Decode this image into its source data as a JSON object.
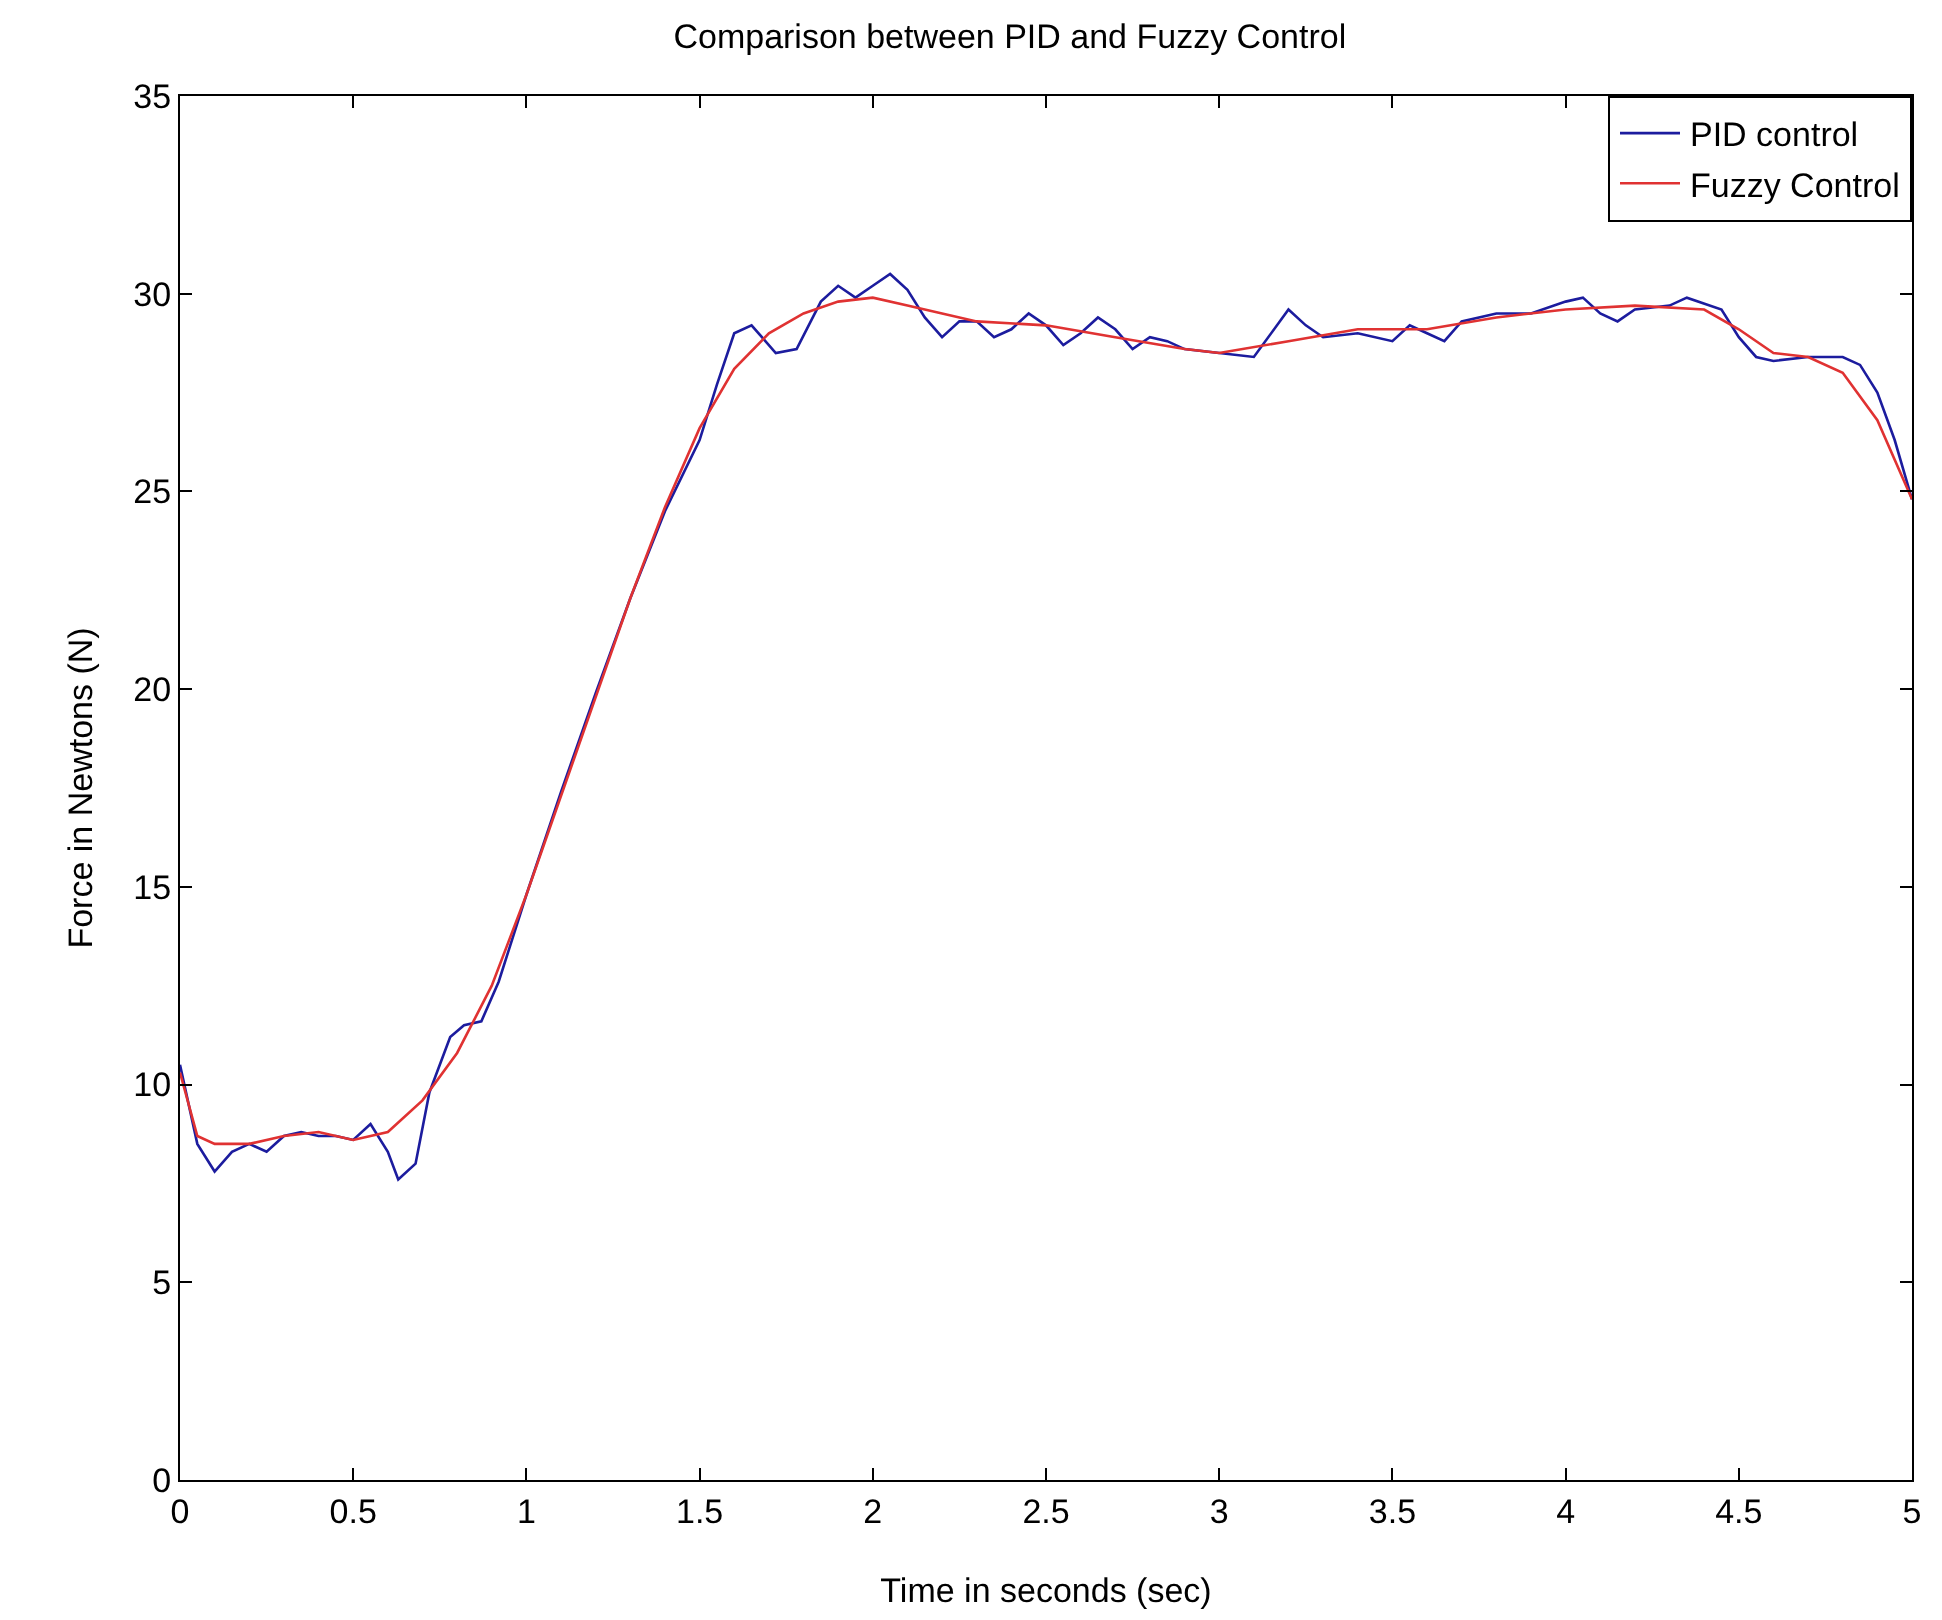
{
  "chart_data": {
    "type": "line",
    "title": "Comparison between PID and Fuzzy Control",
    "xlabel": "Time in seconds (sec)",
    "ylabel": "Force in Newtons (N)",
    "xlim": [
      0,
      5
    ],
    "xticks": [
      0,
      0.5,
      1,
      1.5,
      2,
      2.5,
      3,
      3.5,
      4,
      4.5,
      5
    ],
    "ylim": [
      0,
      35
    ],
    "yticks": [
      0,
      5,
      10,
      15,
      20,
      25,
      30,
      35
    ],
    "grid": false,
    "legend": "top right",
    "line_style": "solid",
    "marker": "none",
    "series": [
      {
        "name": "PID control",
        "color": "#1c1c9e",
        "x": [
          0,
          0.05,
          0.1,
          0.15,
          0.2,
          0.25,
          0.3,
          0.35,
          0.4,
          0.45,
          0.5,
          0.55,
          0.6,
          0.63,
          0.68,
          0.72,
          0.78,
          0.82,
          0.87,
          0.92,
          1,
          1.1,
          1.2,
          1.3,
          1.4,
          1.5,
          1.55,
          1.6,
          1.65,
          1.72,
          1.78,
          1.85,
          1.9,
          1.95,
          2,
          2.05,
          2.1,
          2.15,
          2.2,
          2.25,
          2.3,
          2.35,
          2.4,
          2.45,
          2.5,
          2.55,
          2.6,
          2.65,
          2.7,
          2.75,
          2.8,
          2.85,
          2.9,
          3,
          3.1,
          3.2,
          3.25,
          3.3,
          3.4,
          3.5,
          3.55,
          3.6,
          3.65,
          3.7,
          3.8,
          3.9,
          4,
          4.05,
          4.1,
          4.15,
          4.2,
          4.3,
          4.35,
          4.45,
          4.5,
          4.55,
          4.6,
          4.7,
          4.8,
          4.85,
          4.9,
          4.95,
          5
        ],
        "values": [
          10.5,
          8.5,
          7.8,
          8.3,
          8.5,
          8.3,
          8.7,
          8.8,
          8.7,
          8.7,
          8.6,
          9.0,
          8.3,
          7.6,
          8.0,
          9.8,
          11.2,
          11.5,
          11.6,
          12.6,
          14.8,
          17.4,
          19.9,
          22.3,
          24.5,
          26.3,
          27.7,
          29.0,
          29.2,
          28.5,
          28.6,
          29.8,
          30.2,
          29.9,
          30.2,
          30.5,
          30.1,
          29.4,
          28.9,
          29.3,
          29.3,
          28.9,
          29.1,
          29.5,
          29.2,
          28.7,
          29.0,
          29.4,
          29.1,
          28.6,
          28.9,
          28.8,
          28.6,
          28.5,
          28.4,
          29.6,
          29.2,
          28.9,
          29.0,
          28.8,
          29.2,
          29.0,
          28.8,
          29.3,
          29.5,
          29.5,
          29.8,
          29.9,
          29.5,
          29.3,
          29.6,
          29.7,
          29.9,
          29.6,
          28.9,
          28.4,
          28.3,
          28.4,
          28.4,
          28.2,
          27.5,
          26.3,
          24.8
        ]
      },
      {
        "name": "Fuzzy Control",
        "color": "#e03232",
        "x": [
          0,
          0.05,
          0.1,
          0.2,
          0.3,
          0.4,
          0.5,
          0.6,
          0.7,
          0.8,
          0.9,
          1,
          1.1,
          1.2,
          1.3,
          1.4,
          1.5,
          1.6,
          1.7,
          1.8,
          1.9,
          2,
          2.1,
          2.3,
          2.5,
          2.7,
          2.9,
          3,
          3.2,
          3.4,
          3.6,
          3.8,
          4,
          4.2,
          4.4,
          4.5,
          4.6,
          4.7,
          4.8,
          4.9,
          5
        ],
        "values": [
          10.3,
          8.7,
          8.5,
          8.5,
          8.7,
          8.8,
          8.6,
          8.8,
          9.6,
          10.8,
          12.5,
          14.8,
          17.3,
          19.8,
          22.3,
          24.6,
          26.6,
          28.1,
          29.0,
          29.5,
          29.8,
          29.9,
          29.7,
          29.3,
          29.2,
          28.9,
          28.6,
          28.5,
          28.8,
          29.1,
          29.1,
          29.4,
          29.6,
          29.7,
          29.6,
          29.1,
          28.5,
          28.4,
          28.0,
          26.8,
          24.8
        ]
      }
    ]
  }
}
